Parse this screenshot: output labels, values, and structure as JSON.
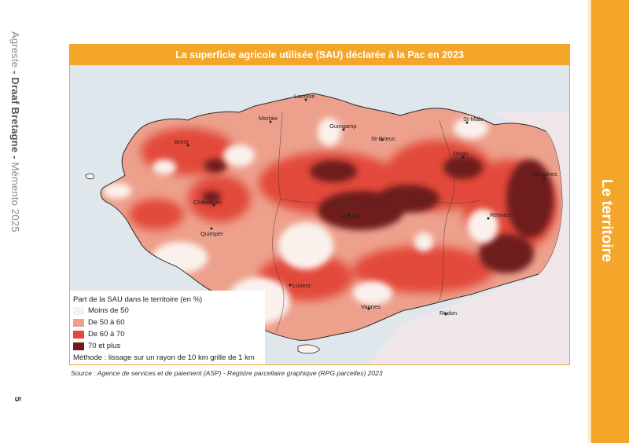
{
  "sidebar": {
    "publisher": "Agreste",
    "separator1": " - ",
    "org": "Draaf Bretagne",
    "separator2": " - ",
    "doc": "Mémento 2025"
  },
  "page_number": "5",
  "section_label": "Le territoire",
  "figure": {
    "title": "La superficie agricole utilisée (SAU) déclarée à la Pac en 2023",
    "source": "Source : Agence de services et de paiement (ASP) - Registre parcellaire graphique (RPG parcelles) 2023"
  },
  "legend": {
    "title": "Part de la SAU dans le territoire (en %)",
    "items": [
      {
        "label": "Moins de 50",
        "color": "#fbf1ec"
      },
      {
        "label": "De 50 à 60",
        "color": "#eda18d"
      },
      {
        "label": "De 60 à 70",
        "color": "#e2493a"
      },
      {
        "label": "70 et plus",
        "color": "#6e1a1f"
      }
    ],
    "method": "Méthode : lissage sur un rayon de 10 km grille de 1 km"
  },
  "colors": {
    "sea": "#dfe7ec",
    "outside_land": "#efe6ea",
    "accent": "#f4a62a"
  },
  "cities": [
    "Lannion",
    "Morlaix",
    "Brest",
    "Guingamp",
    "St-Brieuc",
    "St-Malo",
    "Dinan",
    "Fougères",
    "Châteaulin",
    "Quimper",
    "Pontivy",
    "Rennes",
    "Lorient",
    "Vannes",
    "Redon"
  ]
}
